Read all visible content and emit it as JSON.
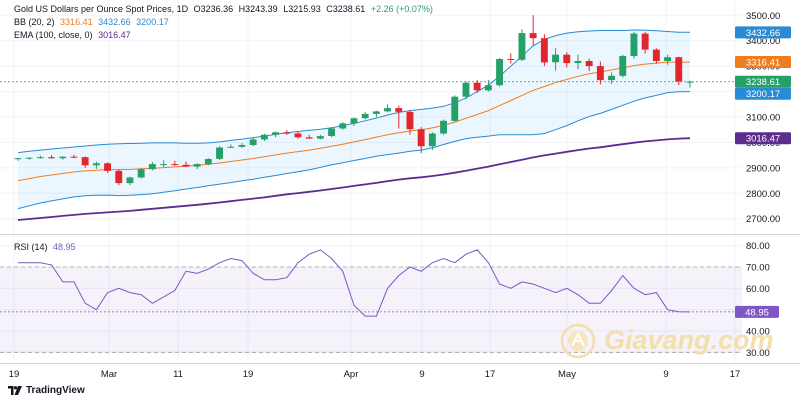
{
  "legend": {
    "title": "Gold US Dollars per Ounce Spot Prices, 1D",
    "ohlc": {
      "o": "O3236.36",
      "h": "H3243.39",
      "l": "L3215.93",
      "c": "C3238.61",
      "chg": "+2.26 (+0.07%)"
    },
    "bb": {
      "label": "BB (20, 2)",
      "basis": "3316.41",
      "upper": "3432.66",
      "lower": "3200.17"
    },
    "ema": {
      "label": "EMA (100, close, 0)",
      "value": "3016.47"
    },
    "rsi": {
      "label": "RSI (14)",
      "value": "48.95"
    }
  },
  "brand": "TradingView",
  "watermark": "Giavang.com",
  "colors": {
    "up": "#26a069",
    "down": "#e3262c",
    "bb_upper": "#2a8ad4",
    "bb_basis": "#f07d1f",
    "bb_lower": "#2a8ad4",
    "ema": "#5b2d8e",
    "rsi": "#7e57c2"
  },
  "chart_data": [
    {
      "type": "candlestick",
      "title": "Gold US Dollars per Ounce Spot Prices, 1D",
      "ylim": [
        2640,
        3560
      ],
      "y_ticks": [
        "2700.00",
        "2800.00",
        "2900.00",
        "3000.00",
        "3100.00",
        "3200.00",
        "3300.00",
        "3400.00",
        "3500.00"
      ],
      "x_ticks": [
        "19",
        "Mar",
        "11",
        "19",
        "Apr",
        "9",
        "17",
        "May",
        "9",
        "17"
      ],
      "price_labels": [
        {
          "value": 3432.66,
          "text": "3432.66",
          "color": "#2a8ad4"
        },
        {
          "value": 3316.41,
          "text": "3316.41",
          "color": "#f07d1f"
        },
        {
          "value": 3238.61,
          "text": "3238.61",
          "color": "#26a069"
        },
        {
          "value": 3200.17,
          "text": "3200.17",
          "color": "#2a8ad4"
        },
        {
          "value": 3016.47,
          "text": "3016.47",
          "color": "#5b2d8e"
        }
      ],
      "candles": [
        [
          2935,
          2940,
          2928,
          2938
        ],
        [
          2938,
          2942,
          2932,
          2940
        ],
        [
          2940,
          2948,
          2936,
          2942
        ],
        [
          2942,
          2950,
          2935,
          2938
        ],
        [
          2938,
          2945,
          2932,
          2944
        ],
        [
          2944,
          2952,
          2938,
          2942
        ],
        [
          2942,
          2945,
          2900,
          2910
        ],
        [
          2910,
          2925,
          2896,
          2918
        ],
        [
          2918,
          2922,
          2880,
          2888
        ],
        [
          2888,
          2895,
          2832,
          2840
        ],
        [
          2840,
          2866,
          2832,
          2862
        ],
        [
          2862,
          2900,
          2858,
          2895
        ],
        [
          2895,
          2923,
          2890,
          2915
        ],
        [
          2915,
          2930,
          2904,
          2915
        ],
        [
          2915,
          2928,
          2908,
          2912
        ],
        [
          2912,
          2925,
          2903,
          2905
        ],
        [
          2905,
          2918,
          2895,
          2915
        ],
        [
          2915,
          2938,
          2910,
          2935
        ],
        [
          2935,
          2985,
          2930,
          2980
        ],
        [
          2980,
          2992,
          2978,
          2983
        ],
        [
          2983,
          2998,
          2978,
          2990
        ],
        [
          2990,
          3020,
          2985,
          3012
        ],
        [
          3012,
          3035,
          3005,
          3030
        ],
        [
          3030,
          3043,
          3020,
          3040
        ],
        [
          3040,
          3048,
          3030,
          3035
        ],
        [
          3035,
          3042,
          3015,
          3020
        ],
        [
          3020,
          3030,
          3015,
          3015
        ],
        [
          3015,
          3030,
          3012,
          3025
        ],
        [
          3025,
          3060,
          3020,
          3055
        ],
        [
          3055,
          3080,
          3050,
          3075
        ],
        [
          3075,
          3098,
          3065,
          3095
        ],
        [
          3095,
          3120,
          3090,
          3112
        ],
        [
          3112,
          3125,
          3100,
          3122
        ],
        [
          3122,
          3150,
          3118,
          3135
        ],
        [
          3135,
          3145,
          3055,
          3120
        ],
        [
          3120,
          3128,
          3030,
          3052
        ],
        [
          3052,
          3060,
          2958,
          2985
        ],
        [
          2985,
          3040,
          2970,
          3035
        ],
        [
          3035,
          3090,
          3030,
          3085
        ],
        [
          3085,
          3185,
          3080,
          3180
        ],
        [
          3180,
          3240,
          3170,
          3235
        ],
        [
          3235,
          3245,
          3195,
          3205
        ],
        [
          3205,
          3245,
          3200,
          3225
        ],
        [
          3225,
          3332,
          3220,
          3328
        ],
        [
          3328,
          3350,
          3310,
          3325
        ],
        [
          3325,
          3445,
          3320,
          3430
        ],
        [
          3430,
          3500,
          3380,
          3410
        ],
        [
          3410,
          3425,
          3300,
          3315
        ],
        [
          3315,
          3370,
          3282,
          3345
        ],
        [
          3345,
          3355,
          3295,
          3312
        ],
        [
          3312,
          3345,
          3288,
          3320
        ],
        [
          3320,
          3330,
          3280,
          3300
        ],
        [
          3300,
          3318,
          3228,
          3245
        ],
        [
          3245,
          3275,
          3230,
          3262
        ],
        [
          3262,
          3345,
          3255,
          3340
        ],
        [
          3340,
          3435,
          3330,
          3428
        ],
        [
          3428,
          3435,
          3350,
          3365
        ],
        [
          3365,
          3370,
          3310,
          3320
        ],
        [
          3320,
          3345,
          3305,
          3335
        ],
        [
          3335,
          3337,
          3225,
          3240
        ],
        [
          3236.36,
          3243.39,
          3215.93,
          3238.61
        ]
      ],
      "bollinger_upper": [
        2960,
        2965,
        2970,
        2974,
        2978,
        2982,
        2986,
        2990,
        2993,
        2995,
        2996,
        2997,
        2998,
        2998,
        2998,
        2997,
        2997,
        2998,
        3002,
        3008,
        3013,
        3019,
        3025,
        3032,
        3038,
        3043,
        3048,
        3052,
        3058,
        3066,
        3075,
        3085,
        3096,
        3108,
        3118,
        3125,
        3130,
        3135,
        3142,
        3156,
        3175,
        3200,
        3225,
        3260,
        3300,
        3340,
        3380,
        3405,
        3420,
        3430,
        3435,
        3438,
        3440,
        3440,
        3440,
        3442,
        3441,
        3439,
        3436,
        3433,
        3433
      ],
      "bollinger_basis": [
        2850,
        2858,
        2866,
        2872,
        2878,
        2884,
        2888,
        2891,
        2893,
        2893,
        2894,
        2896,
        2898,
        2901,
        2904,
        2907,
        2910,
        2914,
        2919,
        2925,
        2931,
        2937,
        2944,
        2951,
        2958,
        2964,
        2970,
        2977,
        2985,
        2993,
        3002,
        3011,
        3021,
        3030,
        3038,
        3045,
        3050,
        3057,
        3067,
        3080,
        3095,
        3110,
        3125,
        3145,
        3165,
        3185,
        3205,
        3220,
        3235,
        3248,
        3260,
        3270,
        3277,
        3285,
        3293,
        3302,
        3308,
        3312,
        3316,
        3316,
        3316
      ],
      "bollinger_lower": [
        2740,
        2751,
        2762,
        2770,
        2778,
        2786,
        2790,
        2792,
        2793,
        2791,
        2792,
        2795,
        2798,
        2804,
        2810,
        2817,
        2823,
        2830,
        2836,
        2842,
        2849,
        2855,
        2863,
        2870,
        2878,
        2885,
        2892,
        2902,
        2912,
        2920,
        2929,
        2937,
        2946,
        2952,
        2958,
        2965,
        2970,
        2979,
        2992,
        3004,
        3015,
        3020,
        3025,
        3030,
        3030,
        3030,
        3030,
        3035,
        3050,
        3066,
        3085,
        3102,
        3114,
        3130,
        3146,
        3162,
        3175,
        3185,
        3196,
        3199,
        3200
      ],
      "ema_100": [
        2695,
        2699,
        2703,
        2707,
        2711,
        2715,
        2719,
        2722,
        2725,
        2728,
        2731,
        2735,
        2739,
        2743,
        2747,
        2751,
        2755,
        2759,
        2764,
        2769,
        2774,
        2779,
        2784,
        2790,
        2796,
        2801,
        2806,
        2811,
        2817,
        2823,
        2829,
        2835,
        2841,
        2848,
        2854,
        2859,
        2863,
        2868,
        2874,
        2881,
        2889,
        2897,
        2905,
        2914,
        2923,
        2932,
        2941,
        2949,
        2956,
        2963,
        2970,
        2976,
        2981,
        2987,
        2993,
        2999,
        3004,
        3008,
        3012,
        3015,
        3016.47
      ]
    },
    {
      "type": "line",
      "title": "RSI (14)",
      "ylim": [
        25,
        85
      ],
      "y_ticks": [
        "30.00",
        "40.00",
        "50.00",
        "60.00",
        "70.00",
        "80.00"
      ],
      "bands": [
        30,
        70
      ],
      "value_label": {
        "value": 48.95,
        "text": "48.95"
      },
      "values": [
        72,
        72,
        72,
        71,
        63,
        63,
        53,
        50,
        58,
        60,
        58,
        57,
        53,
        56,
        59,
        68,
        67,
        69,
        72,
        74,
        73,
        67,
        64,
        64,
        65,
        72,
        76,
        78,
        74,
        68,
        52,
        47,
        47,
        60,
        66,
        70,
        68,
        72,
        74,
        72,
        76,
        78,
        72,
        62,
        60,
        63,
        62,
        60,
        58,
        60,
        57,
        53,
        53,
        59,
        66,
        60,
        57,
        58,
        50,
        49,
        48.95
      ]
    }
  ]
}
